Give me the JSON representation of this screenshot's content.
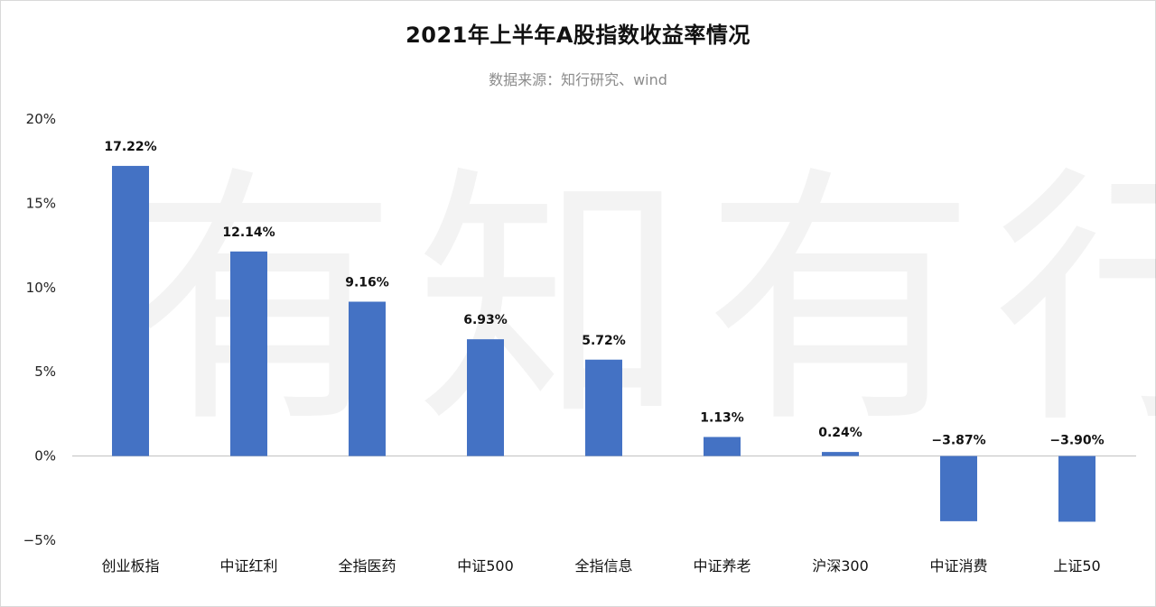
{
  "header": {
    "title": "2021年上半年A股指数收益率情况",
    "subtitle": "数据来源：知行研究、wind"
  },
  "watermark": {
    "text": "有知有行"
  },
  "chart_data": {
    "type": "bar",
    "title": "2021年上半年A股指数收益率情况",
    "subtitle": "数据来源：知行研究、wind",
    "categories": [
      "创业板指",
      "中证红利",
      "全指医药",
      "中证500",
      "全指信息",
      "中证养老",
      "沪深300",
      "中证消费",
      "上证50"
    ],
    "values": [
      17.22,
      12.14,
      9.16,
      6.93,
      5.72,
      1.13,
      0.24,
      -3.87,
      -3.9
    ],
    "data_labels": [
      "17.22%",
      "12.14%",
      "9.16%",
      "6.93%",
      "5.72%",
      "1.13%",
      "0.24%",
      "−3.87%",
      "−3.90%"
    ],
    "y_ticks": [
      20,
      15,
      10,
      5,
      0,
      -5
    ],
    "y_tick_labels": [
      "20%",
      "15%",
      "10%",
      "5%",
      "0%",
      "−5%"
    ],
    "ylim": [
      -5,
      20
    ],
    "xlabel": "",
    "ylabel": "",
    "grid": false,
    "legend": "none",
    "bar_color": "#4472c4",
    "axis_color": "#bfbfbf"
  }
}
